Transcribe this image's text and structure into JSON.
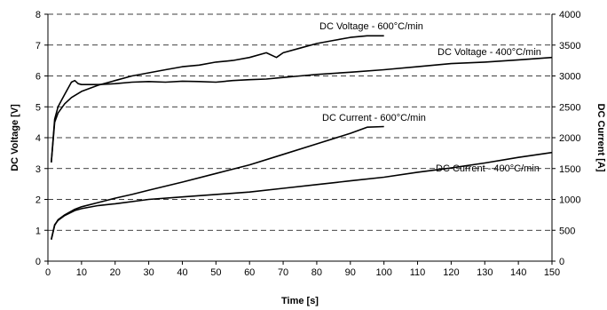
{
  "chart_data": {
    "type": "line",
    "title": "",
    "xlabel": "Time [s]",
    "ylabel": "DC Voltage [V]",
    "y2label": "DC Current [A]",
    "xlim": [
      0,
      150
    ],
    "ylim": [
      0,
      8
    ],
    "y2lim": [
      0,
      4000
    ],
    "xticks": [
      0,
      10,
      20,
      30,
      40,
      50,
      60,
      70,
      80,
      90,
      100,
      110,
      120,
      130,
      140,
      150
    ],
    "yticks": [
      0,
      1,
      2,
      3,
      4,
      5,
      6,
      7,
      8
    ],
    "y2ticks": [
      0,
      500,
      1000,
      1500,
      2000,
      2500,
      3000,
      3500,
      4000
    ],
    "grid": "horizontal dashed",
    "legend": "none (series labelled by annotations)",
    "series": [
      {
        "name": "DC Voltage - 600°C/min",
        "axis": "left",
        "x": [
          1,
          2,
          3,
          5,
          7,
          10,
          15,
          20,
          25,
          30,
          35,
          40,
          45,
          50,
          55,
          60,
          65,
          68,
          70,
          75,
          80,
          85,
          90,
          95,
          100
        ],
        "y": [
          3.2,
          4.5,
          4.8,
          5.1,
          5.3,
          5.5,
          5.7,
          5.85,
          6.0,
          6.1,
          6.2,
          6.3,
          6.35,
          6.45,
          6.5,
          6.6,
          6.75,
          6.6,
          6.75,
          6.9,
          7.05,
          7.15,
          7.25,
          7.3,
          7.3
        ]
      },
      {
        "name": "DC Voltage - 400°C/min",
        "axis": "left",
        "x": [
          1,
          2,
          3,
          4,
          5,
          6,
          7,
          8,
          9,
          10,
          15,
          20,
          25,
          30,
          35,
          40,
          45,
          50,
          55,
          60,
          65,
          70,
          75,
          80,
          90,
          100,
          110,
          120,
          130,
          140,
          150
        ],
        "y": [
          3.2,
          4.6,
          5.0,
          5.2,
          5.4,
          5.6,
          5.8,
          5.85,
          5.75,
          5.72,
          5.72,
          5.75,
          5.8,
          5.82,
          5.8,
          5.83,
          5.82,
          5.8,
          5.85,
          5.88,
          5.9,
          5.95,
          6.0,
          6.05,
          6.12,
          6.2,
          6.3,
          6.4,
          6.45,
          6.52,
          6.6
        ]
      },
      {
        "name": "DC Current - 600°C/min",
        "axis": "right",
        "x": [
          1,
          2,
          3,
          5,
          8,
          10,
          15,
          20,
          25,
          30,
          40,
          50,
          60,
          70,
          80,
          90,
          95,
          100
        ],
        "y": [
          350,
          580,
          670,
          750,
          840,
          880,
          950,
          1020,
          1080,
          1150,
          1280,
          1420,
          1560,
          1730,
          1900,
          2070,
          2170,
          2180
        ]
      },
      {
        "name": "DC Current - 400°C/min",
        "axis": "right",
        "x": [
          1,
          2,
          3,
          5,
          8,
          10,
          15,
          20,
          30,
          40,
          50,
          60,
          70,
          80,
          90,
          100,
          110,
          120,
          130,
          140,
          150
        ],
        "y": [
          350,
          590,
          660,
          740,
          820,
          850,
          900,
          930,
          1000,
          1040,
          1080,
          1120,
          1180,
          1240,
          1300,
          1360,
          1440,
          1510,
          1590,
          1680,
          1760
        ]
      }
    ],
    "annotations": [
      "DC Voltage - 600°C/min",
      "DC Voltage - 400°C/min",
      "DC Current - 600°C/min",
      "DC Current - 400°C/min"
    ]
  }
}
